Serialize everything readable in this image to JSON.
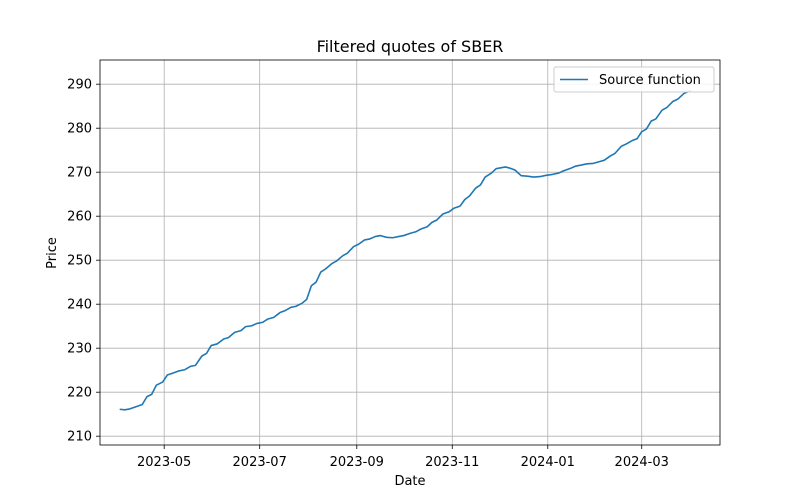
{
  "chart_data": {
    "type": "line",
    "title": "Filtered quotes of SBER",
    "xlabel": "Date",
    "ylabel": "Price",
    "x_ticks": [
      "2023-05",
      "2023-07",
      "2023-09",
      "2023-11",
      "2024-01",
      "2024-03"
    ],
    "y_ticks": [
      210,
      220,
      230,
      240,
      250,
      260,
      270,
      280,
      290
    ],
    "xlim": [
      "2023-03-21",
      "2024-04-20"
    ],
    "ylim": [
      208,
      295.5
    ],
    "grid": true,
    "legend": {
      "position": "top-right"
    },
    "colors": {
      "series": "#1f77b4",
      "grid": "#b0b0b0"
    },
    "series": [
      {
        "name": "Source function",
        "points": [
          [
            "2023-04-03",
            216.1
          ],
          [
            "2023-04-06",
            216.0
          ],
          [
            "2023-04-09",
            216.2
          ],
          [
            "2023-04-13",
            216.7
          ],
          [
            "2023-04-17",
            217.2
          ],
          [
            "2023-04-20",
            219.0
          ],
          [
            "2023-04-23",
            219.5
          ],
          [
            "2023-04-26",
            221.6
          ],
          [
            "2023-04-30",
            222.3
          ],
          [
            "2023-05-03",
            223.9
          ],
          [
            "2023-05-07",
            224.4
          ],
          [
            "2023-05-10",
            224.8
          ],
          [
            "2023-05-14",
            225.1
          ],
          [
            "2023-05-18",
            225.9
          ],
          [
            "2023-05-21",
            226.1
          ],
          [
            "2023-05-25",
            228.2
          ],
          [
            "2023-05-28",
            228.8
          ],
          [
            "2023-05-31",
            230.6
          ],
          [
            "2023-06-04",
            231.0
          ],
          [
            "2023-06-08",
            232.1
          ],
          [
            "2023-06-11",
            232.4
          ],
          [
            "2023-06-15",
            233.6
          ],
          [
            "2023-06-19",
            234.0
          ],
          [
            "2023-06-22",
            234.9
          ],
          [
            "2023-06-26",
            235.1
          ],
          [
            "2023-06-29",
            235.6
          ],
          [
            "2023-07-03",
            235.9
          ],
          [
            "2023-07-06",
            236.6
          ],
          [
            "2023-07-10",
            237.0
          ],
          [
            "2023-07-14",
            238.1
          ],
          [
            "2023-07-17",
            238.5
          ],
          [
            "2023-07-21",
            239.3
          ],
          [
            "2023-07-24",
            239.5
          ],
          [
            "2023-07-28",
            240.2
          ],
          [
            "2023-07-31",
            241.1
          ],
          [
            "2023-08-03",
            244.2
          ],
          [
            "2023-08-06",
            245.0
          ],
          [
            "2023-08-09",
            247.3
          ],
          [
            "2023-08-12",
            248.0
          ],
          [
            "2023-08-16",
            249.2
          ],
          [
            "2023-08-19",
            249.8
          ],
          [
            "2023-08-23",
            251.0
          ],
          [
            "2023-08-26",
            251.6
          ],
          [
            "2023-08-30",
            253.1
          ],
          [
            "2023-09-02",
            253.6
          ],
          [
            "2023-09-06",
            254.6
          ],
          [
            "2023-09-09",
            254.8
          ],
          [
            "2023-09-13",
            255.4
          ],
          [
            "2023-09-16",
            255.6
          ],
          [
            "2023-09-20",
            255.2
          ],
          [
            "2023-09-24",
            255.1
          ],
          [
            "2023-09-28",
            255.4
          ],
          [
            "2023-10-01",
            255.6
          ],
          [
            "2023-10-05",
            256.1
          ],
          [
            "2023-10-09",
            256.5
          ],
          [
            "2023-10-12",
            257.1
          ],
          [
            "2023-10-16",
            257.6
          ],
          [
            "2023-10-19",
            258.6
          ],
          [
            "2023-10-22",
            259.1
          ],
          [
            "2023-10-26",
            260.5
          ],
          [
            "2023-10-30",
            261.0
          ],
          [
            "2023-11-02",
            261.8
          ],
          [
            "2023-11-06",
            262.3
          ],
          [
            "2023-11-09",
            263.8
          ],
          [
            "2023-11-12",
            264.6
          ],
          [
            "2023-11-16",
            266.4
          ],
          [
            "2023-11-19",
            267.1
          ],
          [
            "2023-11-22",
            268.9
          ],
          [
            "2023-11-26",
            269.8
          ],
          [
            "2023-11-29",
            270.8
          ],
          [
            "2023-12-02",
            271.0
          ],
          [
            "2023-12-05",
            271.2
          ],
          [
            "2023-12-08",
            270.9
          ],
          [
            "2023-12-11",
            270.5
          ],
          [
            "2023-12-15",
            269.2
          ],
          [
            "2023-12-19",
            269.1
          ],
          [
            "2023-12-23",
            268.9
          ],
          [
            "2023-12-27",
            269.0
          ],
          [
            "2023-12-31",
            269.3
          ],
          [
            "2024-01-04",
            269.5
          ],
          [
            "2024-01-08",
            269.8
          ],
          [
            "2024-01-11",
            270.3
          ],
          [
            "2024-01-15",
            270.8
          ],
          [
            "2024-01-19",
            271.4
          ],
          [
            "2024-01-22",
            271.6
          ],
          [
            "2024-01-26",
            271.9
          ],
          [
            "2024-01-30",
            272.0
          ],
          [
            "2024-02-03",
            272.4
          ],
          [
            "2024-02-06",
            272.7
          ],
          [
            "2024-02-10",
            273.7
          ],
          [
            "2024-02-13",
            274.3
          ],
          [
            "2024-02-17",
            275.9
          ],
          [
            "2024-02-20",
            276.4
          ],
          [
            "2024-02-24",
            277.2
          ],
          [
            "2024-02-27",
            277.6
          ],
          [
            "2024-03-01",
            279.2
          ],
          [
            "2024-03-04",
            279.8
          ],
          [
            "2024-03-07",
            281.6
          ],
          [
            "2024-03-10",
            282.1
          ],
          [
            "2024-03-14",
            284.1
          ],
          [
            "2024-03-17",
            284.7
          ],
          [
            "2024-03-21",
            286.1
          ],
          [
            "2024-03-24",
            286.6
          ],
          [
            "2024-03-28",
            287.9
          ],
          [
            "2024-04-01",
            288.5
          ]
        ]
      }
    ]
  }
}
